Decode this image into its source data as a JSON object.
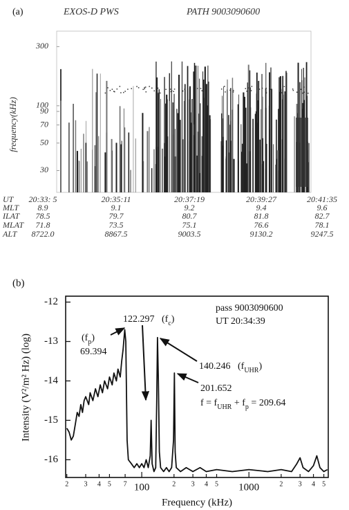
{
  "chart_data": [
    {
      "type": "spectrogram",
      "label": "(a)",
      "title_left": "EXOS-D PWS",
      "title_right": "PATH 9003090600",
      "y_label": "frequency(kHz)",
      "yscale": "log",
      "ylim": [
        20,
        400
      ],
      "yticks": [
        300,
        100,
        90,
        70,
        50,
        30
      ]
    },
    {
      "type": "line",
      "label": "(b)",
      "x_label": "Frequency (kHz)",
      "y_label": "Intensity (V²/m² Hz) (log)",
      "xscale": "log",
      "xlim": [
        19.5,
        5500
      ],
      "ylim": [
        -16.45,
        -11.85
      ],
      "xticks": [
        {
          "value": 20,
          "label": "2"
        },
        {
          "value": 30,
          "label": "3"
        },
        {
          "value": 40,
          "label": "4"
        },
        {
          "value": 50,
          "label": "5"
        },
        {
          "value": 70,
          "label": "7"
        },
        100,
        {
          "value": 200,
          "label": "2"
        },
        {
          "value": 300,
          "label": "3"
        },
        {
          "value": 400,
          "label": "4"
        },
        {
          "value": 500,
          "label": "5"
        },
        1000,
        {
          "value": 2000,
          "label": "2"
        },
        {
          "value": 3000,
          "label": "3"
        },
        {
          "value": 4000,
          "label": "4"
        },
        {
          "value": 5000,
          "label": "5"
        }
      ],
      "yticks": [
        -12,
        -13,
        -14,
        -15,
        -16
      ],
      "x": [
        20,
        21,
        22,
        23,
        24,
        25,
        26,
        27,
        28,
        29,
        30,
        32,
        33,
        35,
        37,
        39,
        41,
        43,
        45,
        48,
        50,
        53,
        55,
        58,
        60,
        63,
        65,
        67,
        69.394,
        71,
        73,
        75,
        80,
        85,
        90,
        95,
        100,
        105,
        110,
        115,
        120,
        122.297,
        125,
        130,
        135,
        138,
        140.246,
        143,
        146,
        150,
        160,
        170,
        180,
        190,
        198,
        201.652,
        205,
        210,
        230,
        260,
        300,
        350,
        400,
        500,
        700,
        1000,
        1500,
        2000,
        2500,
        2800,
        3000,
        3200,
        3600,
        4000,
        4300,
        4600,
        5000,
        5400
      ],
      "series": [
        {
          "color": "#111111",
          "values": [
            -15.2,
            -15.3,
            -15.5,
            -15.4,
            -15.1,
            -14.8,
            -14.9,
            -14.6,
            -14.8,
            -14.5,
            -14.4,
            -14.6,
            -14.3,
            -14.5,
            -14.2,
            -14.4,
            -14.1,
            -14.3,
            -14.0,
            -14.2,
            -13.9,
            -14.1,
            -13.8,
            -14.0,
            -13.7,
            -13.9,
            -13.5,
            -13.2,
            -12.7,
            -13.0,
            -15.5,
            -16.0,
            -16.1,
            -16.2,
            -16.1,
            -16.2,
            -16.1,
            -16.2,
            -16.0,
            -16.2,
            -15.9,
            -15.0,
            -16.1,
            -16.3,
            -16.2,
            -14.5,
            -12.9,
            -14.0,
            -15.8,
            -16.2,
            -16.3,
            -16.2,
            -16.3,
            -16.2,
            -15.5,
            -13.8,
            -15.8,
            -16.2,
            -16.3,
            -16.2,
            -16.3,
            -16.2,
            -16.3,
            -16.25,
            -16.3,
            -16.25,
            -16.3,
            -16.25,
            -16.3,
            -16.1,
            -15.95,
            -16.2,
            -16.3,
            -16.15,
            -15.9,
            -16.2,
            -16.3,
            -16.25
          ]
        }
      ],
      "annotations": [
        {
          "segments": [
            {
              "text": "pass 9003090600"
            }
          ]
        },
        {
          "segments": [
            {
              "text": "UT  20:34:39"
            }
          ]
        },
        {
          "segments": [
            {
              "text": "122.297"
            }
          ]
        },
        {
          "segments": [
            {
              "text": "(f"
            },
            {
              "text": "c",
              "sub": true
            },
            {
              "text": ")"
            }
          ]
        },
        {
          "segments": [
            {
              "text": "(f"
            },
            {
              "text": "p",
              "sub": true
            },
            {
              "text": ")"
            }
          ]
        },
        {
          "segments": [
            {
              "text": "69.394"
            }
          ]
        },
        {
          "segments": [
            {
              "text": "140.246"
            }
          ]
        },
        {
          "segments": [
            {
              "text": "(f"
            },
            {
              "text": "UHR",
              "sub": true
            },
            {
              "text": ")"
            }
          ]
        },
        {
          "segments": [
            {
              "text": "201.652"
            }
          ]
        },
        {
          "segments": [
            {
              "text": "f = f"
            },
            {
              "text": "UHR",
              "sub": true
            },
            {
              "text": " + f"
            },
            {
              "text": "p",
              "sub": true
            },
            {
              "text": " = 209.64"
            }
          ]
        }
      ]
    }
  ],
  "table": {
    "rows": [
      [
        "UT",
        "20:33: 5",
        "20:35:11",
        "20:37:19",
        "20:39:27",
        "20:41:35"
      ],
      [
        "MLT",
        "8.9",
        "9.1",
        "9.2",
        "9.4",
        "9.6"
      ],
      [
        "ILAT",
        "78.5",
        "79.7",
        "80.7",
        "81.8",
        "82.7"
      ],
      [
        "MLAT",
        "71.8",
        "73.5",
        "75.1",
        "76.6",
        "78.1"
      ],
      [
        "ALT",
        "8722.0",
        "8867.5",
        "9003.5",
        "9130.2",
        "9247.5"
      ]
    ]
  }
}
